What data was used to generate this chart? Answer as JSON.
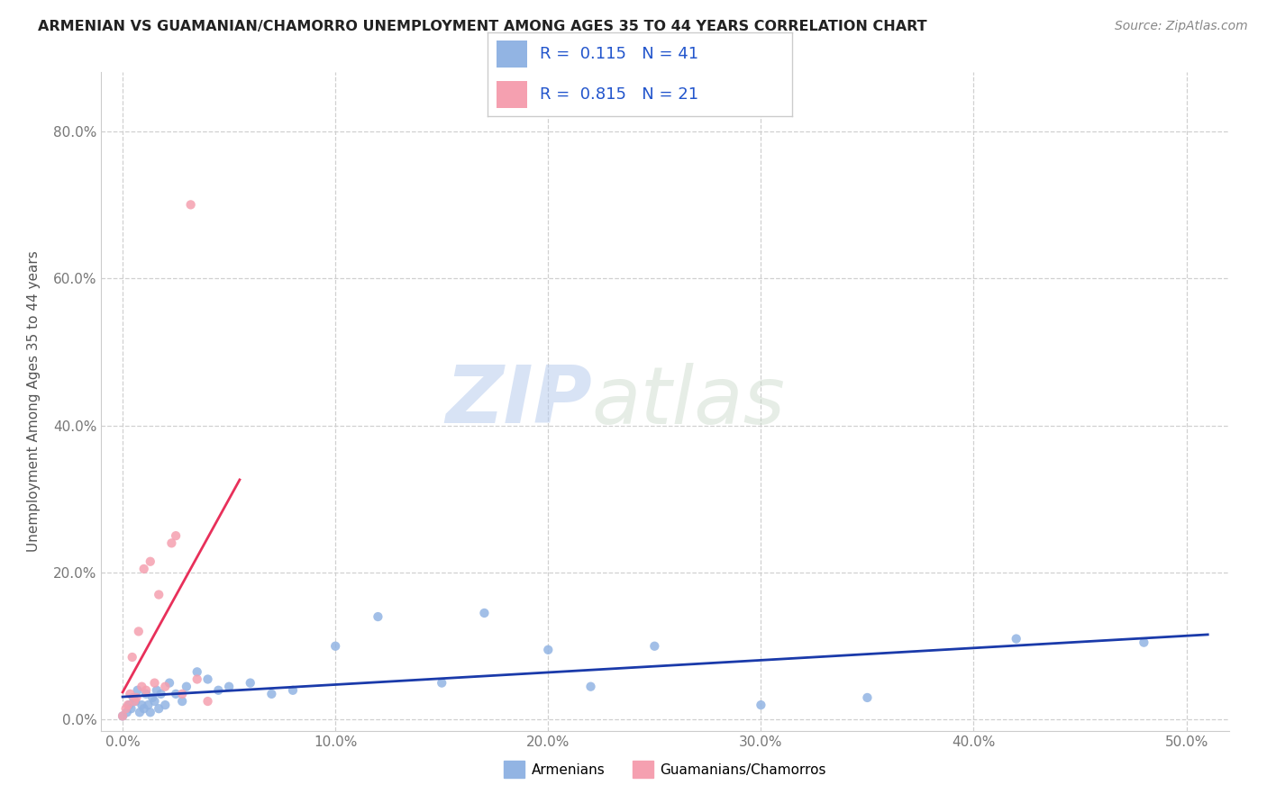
{
  "title": "ARMENIAN VS GUAMANIAN/CHAMORRO UNEMPLOYMENT AMONG AGES 35 TO 44 YEARS CORRELATION CHART",
  "source": "Source: ZipAtlas.com",
  "xlabel_vals": [
    0.0,
    10.0,
    20.0,
    30.0,
    40.0,
    50.0
  ],
  "ylabel_vals": [
    0.0,
    20.0,
    40.0,
    60.0,
    80.0
  ],
  "xlim": [
    -1.0,
    52
  ],
  "ylim": [
    -1.5,
    88
  ],
  "ylabel": "Unemployment Among Ages 35 to 44 years",
  "watermark_zip": "ZIP",
  "watermark_atlas": "atlas",
  "armenian_color": "#92b4e3",
  "guamanian_color": "#f5a0b0",
  "armenian_line_color": "#1a3aaa",
  "guamanian_line_color": "#e8305a",
  "legend_R1": "0.115",
  "legend_N1": "41",
  "legend_R2": "0.815",
  "legend_N2": "21",
  "armenian_x": [
    0.0,
    0.2,
    0.3,
    0.4,
    0.5,
    0.6,
    0.7,
    0.8,
    0.9,
    1.0,
    1.1,
    1.2,
    1.3,
    1.4,
    1.5,
    1.6,
    1.7,
    1.8,
    2.0,
    2.2,
    2.5,
    2.8,
    3.0,
    3.5,
    4.0,
    4.5,
    5.0,
    6.0,
    7.0,
    8.0,
    10.0,
    12.0,
    15.0,
    17.0,
    20.0,
    22.0,
    25.0,
    30.0,
    35.0,
    42.0,
    48.0
  ],
  "armenian_y": [
    0.5,
    1.0,
    2.0,
    1.5,
    3.0,
    2.5,
    4.0,
    1.0,
    2.0,
    1.5,
    3.5,
    2.0,
    1.0,
    3.0,
    2.5,
    4.0,
    1.5,
    3.5,
    2.0,
    5.0,
    3.5,
    2.5,
    4.5,
    6.5,
    5.5,
    4.0,
    4.5,
    5.0,
    3.5,
    4.0,
    10.0,
    14.0,
    5.0,
    14.5,
    9.5,
    4.5,
    10.0,
    2.0,
    3.0,
    11.0,
    10.5
  ],
  "guamanian_x": [
    0.0,
    0.15,
    0.25,
    0.35,
    0.45,
    0.55,
    0.65,
    0.75,
    0.9,
    1.0,
    1.1,
    1.3,
    1.5,
    1.7,
    2.0,
    2.3,
    2.5,
    2.8,
    3.2,
    3.5,
    4.0
  ],
  "guamanian_y": [
    0.5,
    1.5,
    2.0,
    3.5,
    8.5,
    2.5,
    3.0,
    12.0,
    4.5,
    20.5,
    4.0,
    21.5,
    5.0,
    17.0,
    4.5,
    24.0,
    25.0,
    3.5,
    70.0,
    5.5,
    2.5
  ],
  "background_color": "#ffffff",
  "grid_color": "#d0d0d0"
}
